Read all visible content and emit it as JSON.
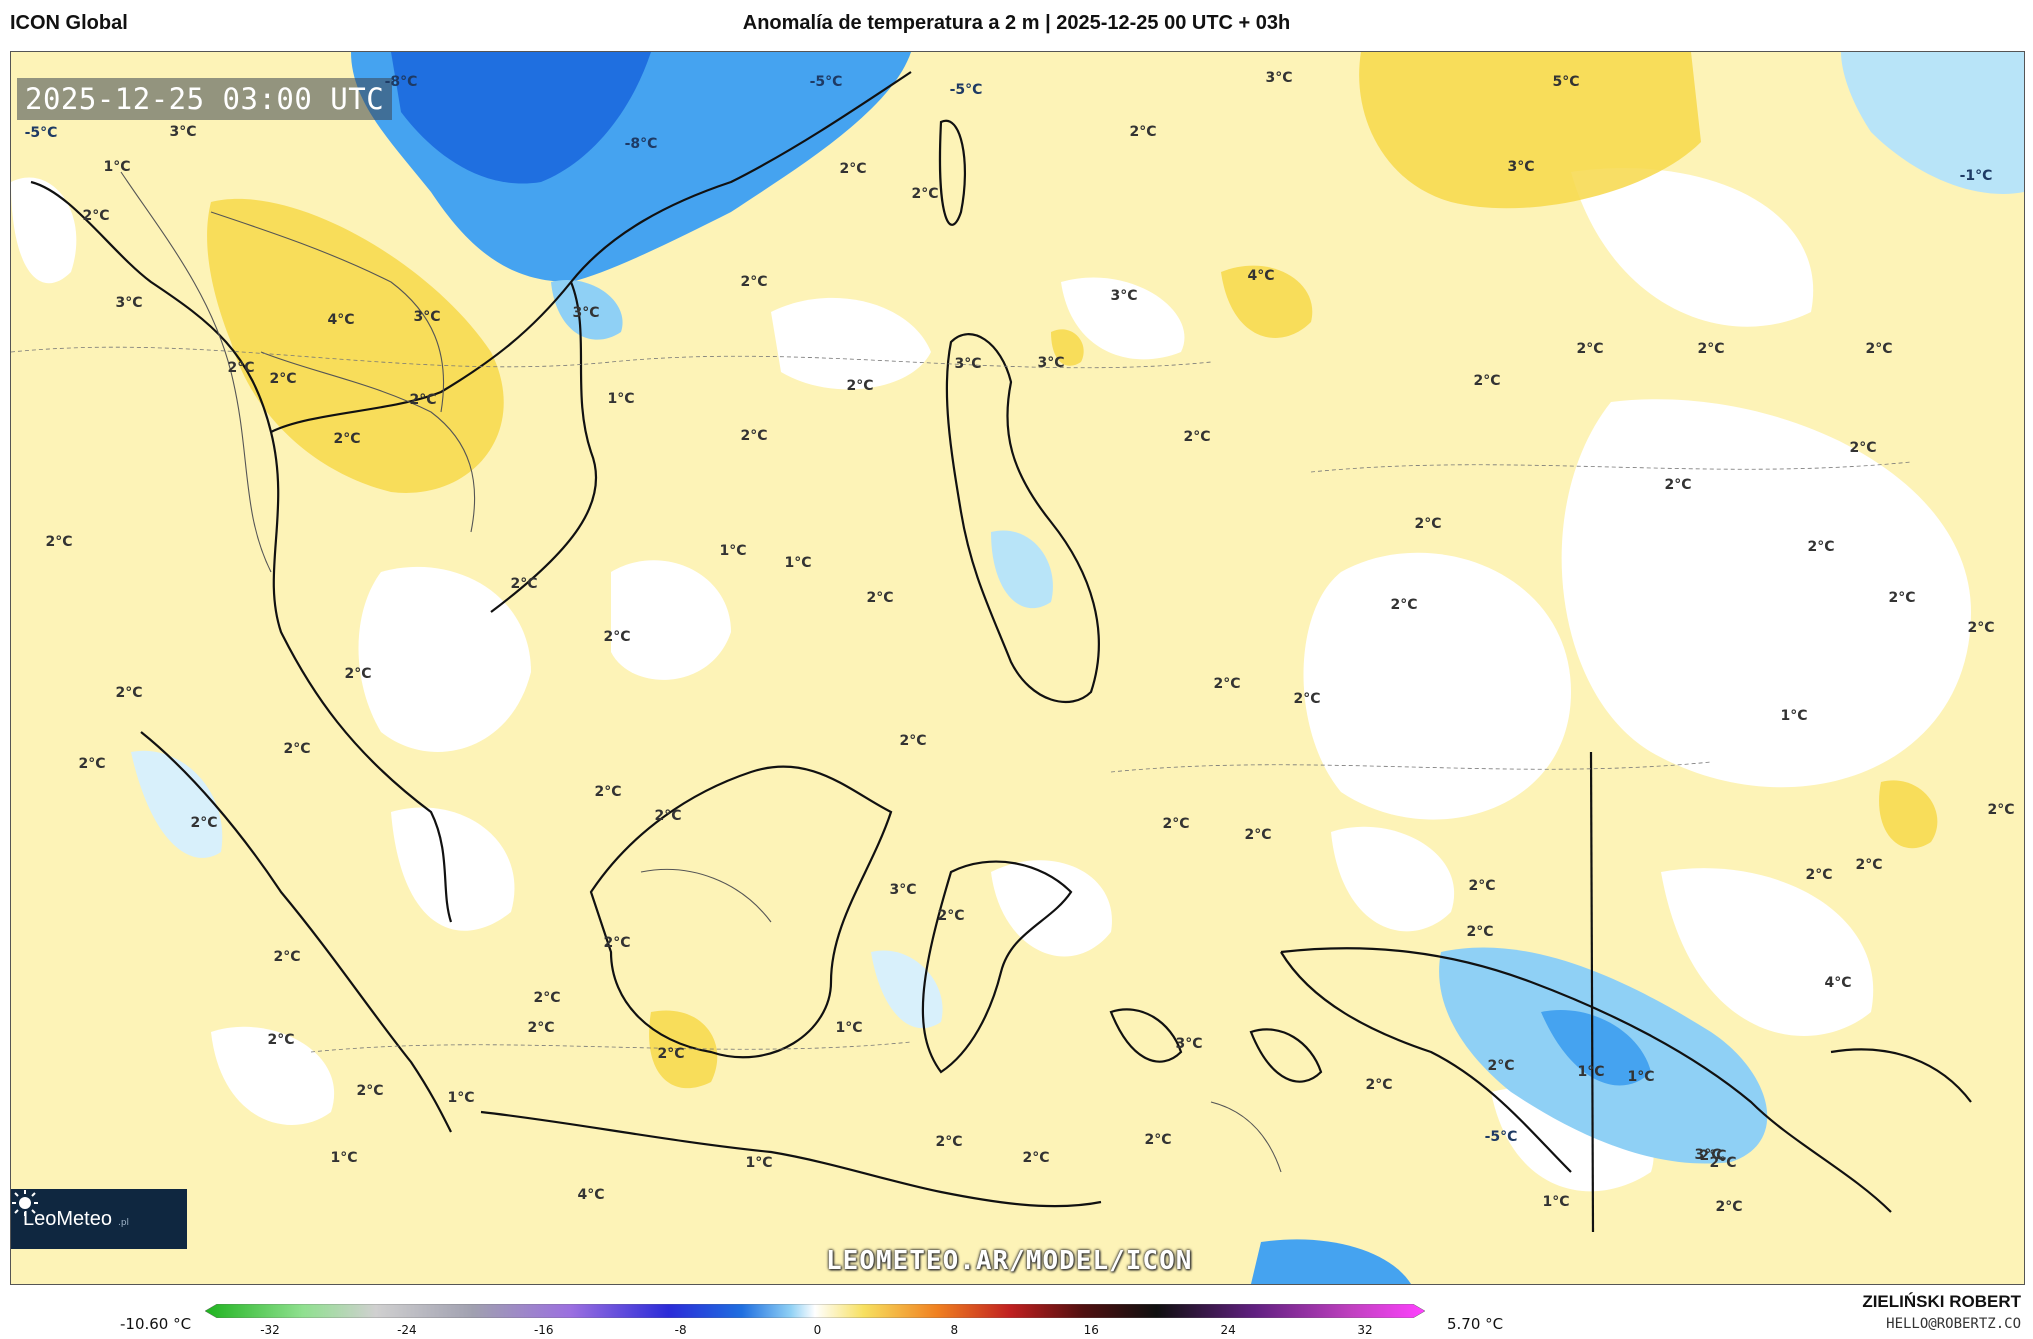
{
  "header": {
    "model": "ICON Global",
    "title": "Anomalía de temperatura a 2 m | 2025-12-25 00 UTC + 03h"
  },
  "map": {
    "valid_time": "2025-12-25 03:00 UTC",
    "watermark_url": "LEOMETEO.AR/MODEL/ICON",
    "logo": {
      "name": "LeoMeteo",
      "suffix": ".pl"
    },
    "contour_labels": [
      "-8°C",
      "-5°C",
      "-8°C",
      "-5°C",
      "3°C",
      "5°C",
      "-1°C",
      "-5°C",
      "3°C",
      "2°C",
      "1°C",
      "2°C",
      "3°C",
      "2°C",
      "2°C",
      "2°C",
      "3°C",
      "4°C",
      "3°C",
      "3°C",
      "3°C",
      "4°C",
      "3°C",
      "3°C",
      "2°C",
      "2°C",
      "2°C",
      "2°C",
      "2°C",
      "2°C",
      "2°C",
      "1°C",
      "2°C",
      "2°C",
      "2°C",
      "2°C",
      "2°C",
      "2°C",
      "2°C",
      "1°C",
      "2°C",
      "2°C",
      "2°C",
      "1°C",
      "2°C",
      "2°C",
      "2°C",
      "2°C",
      "2°C",
      "2°C",
      "2°C",
      "2°C",
      "1°C",
      "2°C",
      "2°C",
      "2°C",
      "2°C",
      "2°C",
      "2°C",
      "2°C",
      "2°C",
      "2°C",
      "2°C",
      "2°C",
      "2°C",
      "3°C",
      "2°C",
      "2°C",
      "2°C",
      "2°C",
      "2°C",
      "2°C",
      "2°C",
      "4°C",
      "2°C",
      "2°C",
      "1°C",
      "3°C",
      "2°C",
      "1°C",
      "1°C",
      "2°C",
      "2°C",
      "1°C",
      "2°C",
      "2°C",
      "2°C",
      "-5°C",
      "3°C",
      "1°C",
      "2°C",
      "2°C",
      "1°C",
      "4°C",
      "1°C",
      "2°C"
    ]
  },
  "colorbar": {
    "min_label": "-10.60 °C",
    "max_label": "5.70 °C",
    "ticks": [
      "-32",
      "-24",
      "-16",
      "-8",
      "0",
      "8",
      "16",
      "24",
      "32"
    ]
  },
  "author": {
    "name": "ZIELIŃSKI ROBERT",
    "email": "HELLO@ROBERTZ.CO"
  },
  "colors": {
    "cold": "#1e73e8",
    "warm": "#f5d020",
    "neutral": "#ffffff",
    "logo_bg": "#0f2740"
  }
}
